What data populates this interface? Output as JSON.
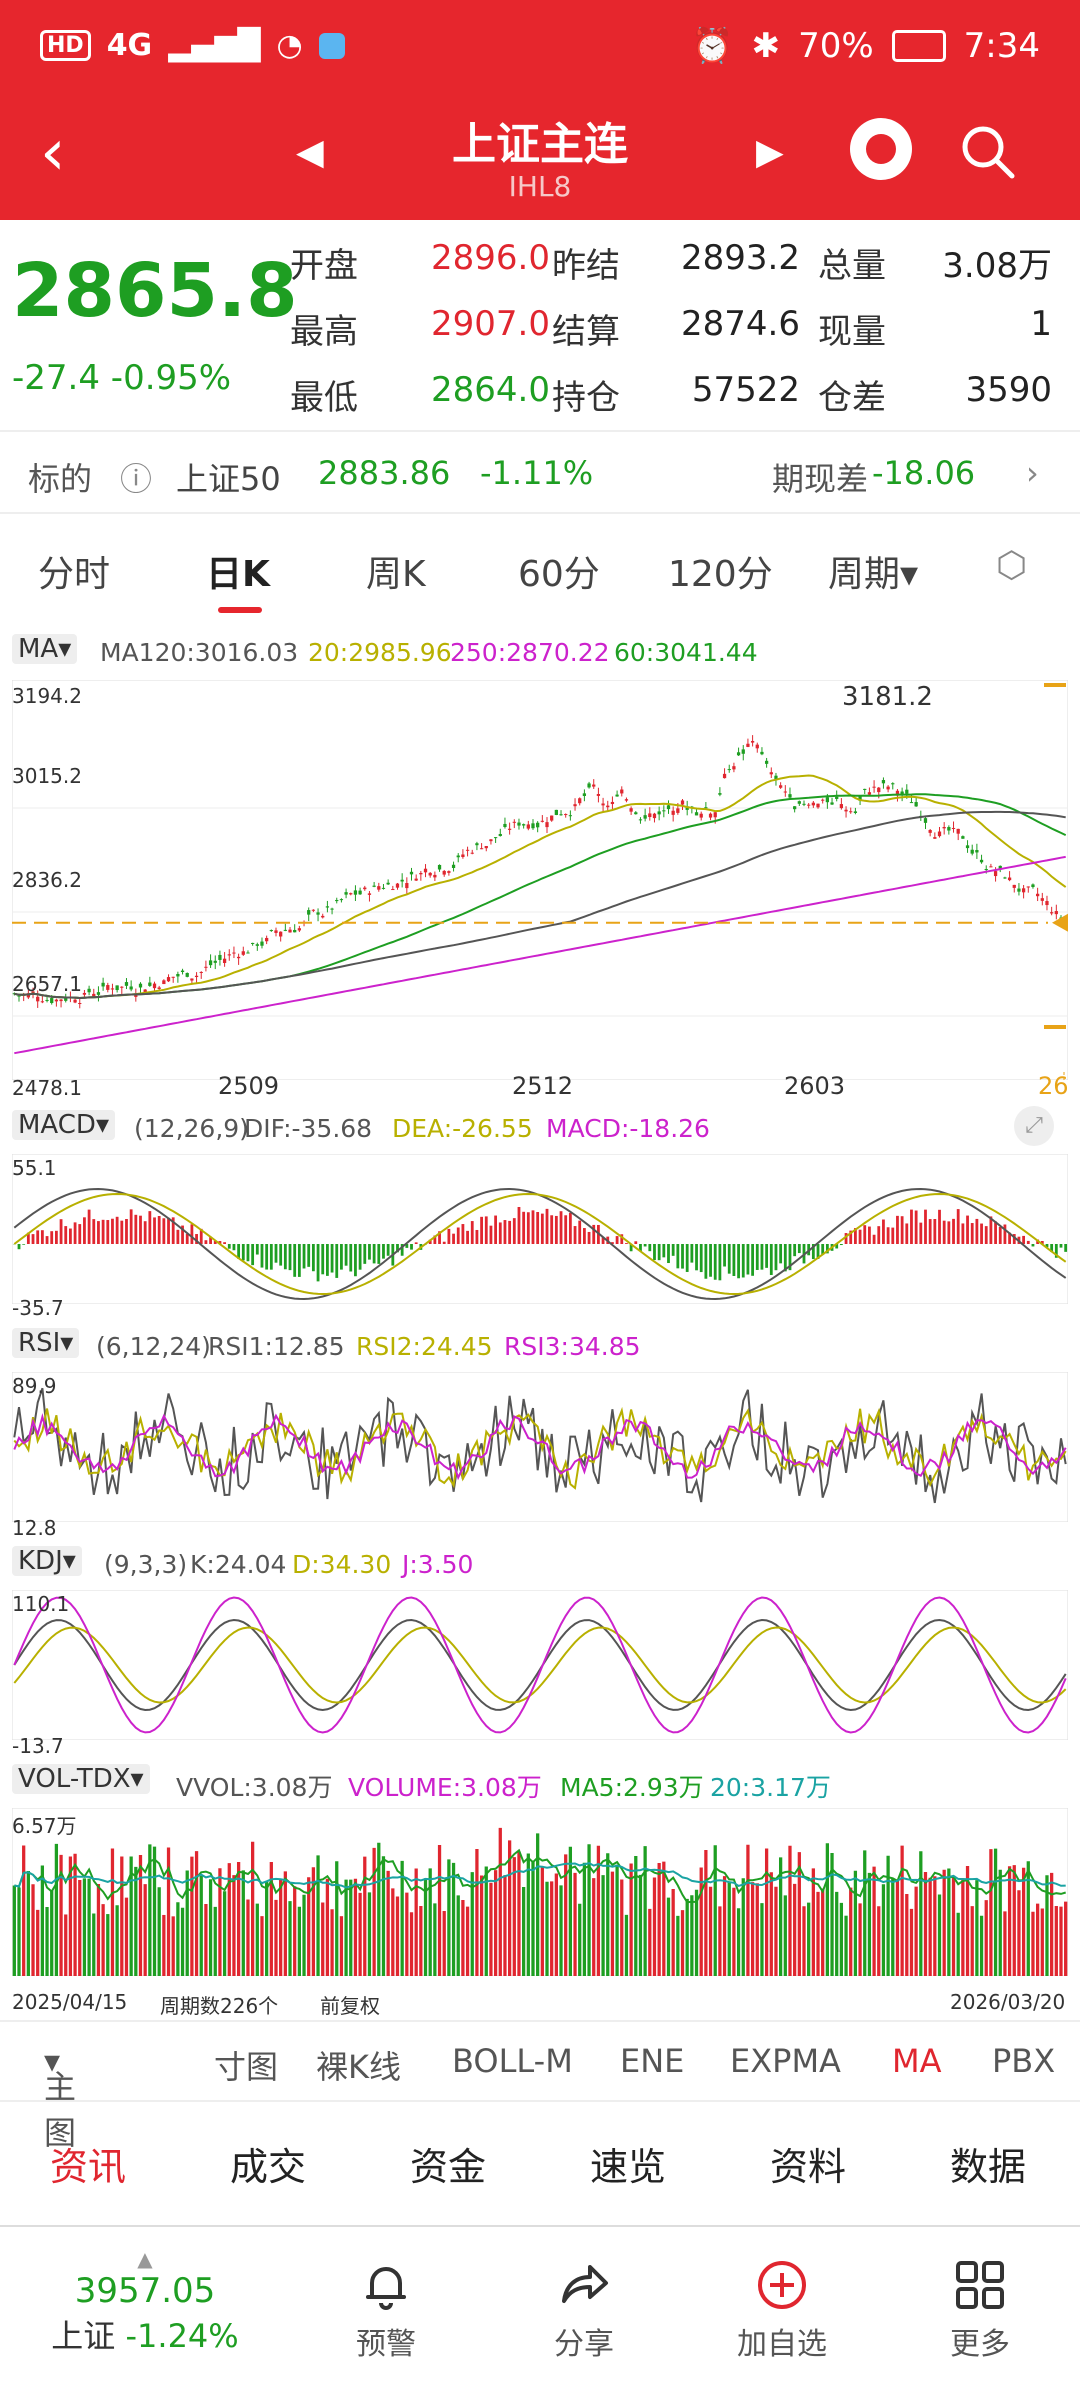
{
  "status": {
    "battery": "70%",
    "time": "7:34",
    "network": "4G",
    "hd": "HD"
  },
  "header": {
    "title": "上证主连",
    "code": "IHL8"
  },
  "quote": {
    "price": "2865.8",
    "change": "-27.4",
    "change_pct": "-0.95%",
    "rows": [
      {
        "l1": "开盘",
        "v1": "2896.0",
        "l2": "昨结",
        "v2": "2893.2",
        "l3": "总量",
        "v3": "3.08万"
      },
      {
        "l1": "最高",
        "v1": "2907.0",
        "l2": "结算",
        "v2": "2874.6",
        "l3": "现量",
        "v3": "1"
      },
      {
        "l1": "最低",
        "v1": "2864.0",
        "l2": "持仓",
        "v2": "57522",
        "l3": "仓差",
        "v3": "3590"
      }
    ]
  },
  "underlying": {
    "label": "标的",
    "name": "上证50",
    "price": "2883.86",
    "pct": "-1.11%",
    "basis_label": "期现差",
    "basis": "-18.06"
  },
  "tabs": [
    "分时",
    "日K",
    "周K",
    "60分",
    "120分",
    "周期"
  ],
  "main_chart": {
    "indicator": "MA",
    "legend": [
      {
        "text": "MA120:3016.03",
        "color": "#555555"
      },
      {
        "text": "20:2985.96",
        "color": "#b8b000"
      },
      {
        "text": "250:2870.22",
        "color": "#cc22cc"
      },
      {
        "text": "60:3041.44",
        "color": "#1e9e22"
      }
    ],
    "y_ticks": [
      "3194.2",
      "3015.2",
      "2836.2",
      "2657.1",
      "2478.1"
    ],
    "x_ticks": [
      "2509",
      "2512",
      "2603",
      "26"
    ],
    "high_label": "3181.2"
  },
  "macd": {
    "name": "MACD",
    "params": "(12,26,9)",
    "dif": "DIF:-35.68",
    "dea": "DEA:-26.55",
    "macd": "MACD:-18.26",
    "ymax": "55.1",
    "ymin": "-35.7"
  },
  "rsi": {
    "name": "RSI",
    "params": "(6,12,24)",
    "rsi1": "RSI1:12.85",
    "rsi2": "RSI2:24.45",
    "rsi3": "RSI3:34.85",
    "ymax": "89.9",
    "ymin": "12.8"
  },
  "kdj": {
    "name": "KDJ",
    "params": "(9,3,3)",
    "k": "K:24.04",
    "d": "D:34.30",
    "j": "J:3.50",
    "ymax": "110.1",
    "ymin": "-13.7"
  },
  "vol": {
    "name": "VOL-TDX",
    "vvol": "VVOL:3.08万",
    "volume": "VOLUME:3.08万",
    "ma5": "MA5:2.93万",
    "ma20": "20:3.17万",
    "ymax": "6.57万"
  },
  "footer_chart": {
    "start_date": "2025/04/15",
    "periods": "周期数226个",
    "adjust": "前复权",
    "end_date": "2026/03/20"
  },
  "indicator_bar": [
    "主图",
    "寸图",
    "裸K线",
    "BOLL-M",
    "ENE",
    "EXPMA",
    "MA",
    "PBX"
  ],
  "info_tabs": [
    "资讯",
    "成交",
    "资金",
    "速览",
    "资料",
    "数据"
  ],
  "bottom_nav": {
    "index_value": "3957.05",
    "index_name": "上证",
    "index_pct": "-1.24%",
    "items": [
      "预警",
      "分享",
      "加自选",
      "更多"
    ]
  },
  "colors": {
    "up": "#e0262f",
    "down": "#1e9e22",
    "header": "#e6262d"
  }
}
